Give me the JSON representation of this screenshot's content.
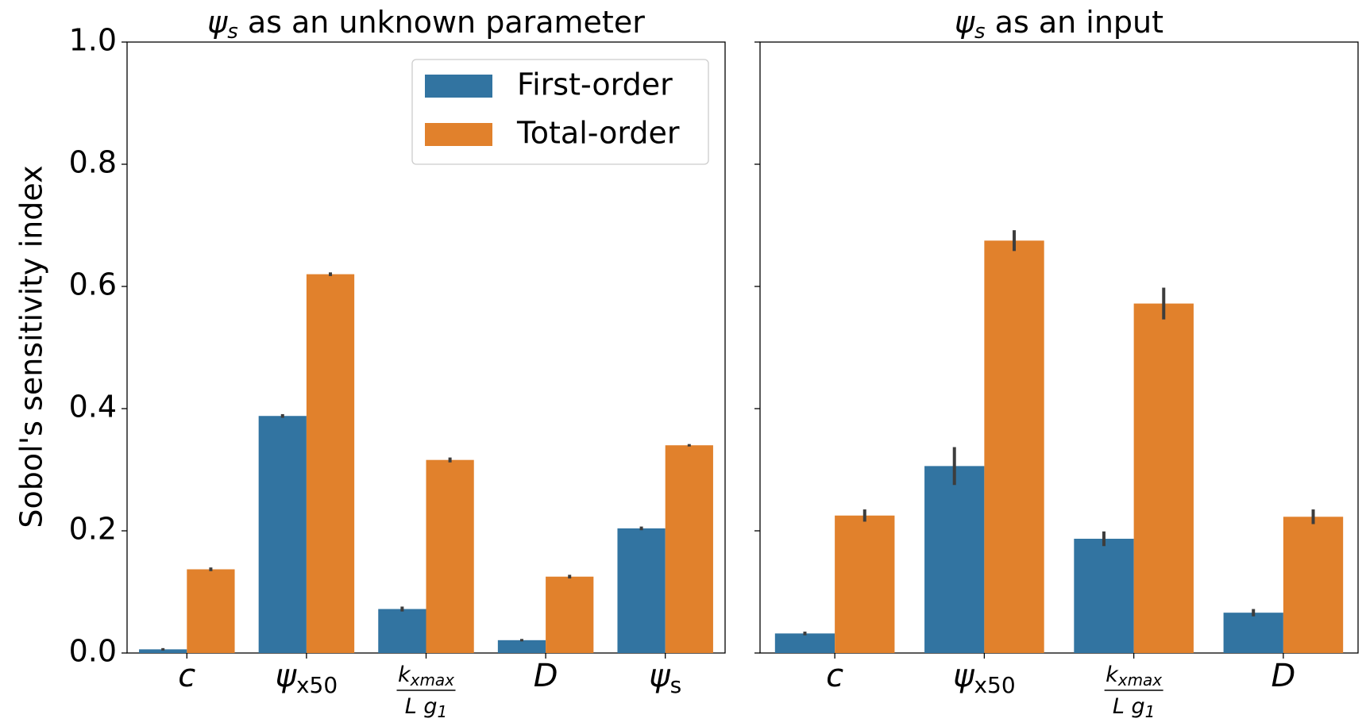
{
  "figure": {
    "ylabel": "Sobol's sensitivity index",
    "ylim": [
      0,
      1.0
    ],
    "yticks": [
      "0.0",
      "0.2",
      "0.4",
      "0.6",
      "0.8",
      "1.0"
    ]
  },
  "legend": {
    "placement": "top-right",
    "entries": [
      {
        "label": "First-order",
        "color": "#3274a1"
      },
      {
        "label": "Total-order",
        "color": "#e1812c"
      }
    ]
  },
  "chart_data": [
    {
      "type": "bar",
      "title_symbol": "ψ",
      "title_symbol_sub": "s",
      "title": " as an unknown parameter",
      "categories": [
        "c",
        "ψx50",
        "kxmax / L g1",
        "D",
        "ψs"
      ],
      "category_labels": [
        {
          "main": "c",
          "sub": ""
        },
        {
          "main": "ψ",
          "sub": "x50"
        },
        {
          "num": "k",
          "num_sub": "xmax",
          "den": "L g",
          "den_sub": "1"
        },
        {
          "main": "D",
          "sub": ""
        },
        {
          "main": "ψ",
          "sub": "s"
        }
      ],
      "ylim": [
        0,
        1.0
      ],
      "series": [
        {
          "name": "First-order",
          "color": "#3274a1",
          "values": [
            0.006,
            0.388,
            0.072,
            0.021,
            0.204
          ],
          "errors": [
            0.002,
            0.003,
            0.004,
            0.002,
            0.003
          ]
        },
        {
          "name": "Total-order",
          "color": "#e1812c",
          "values": [
            0.137,
            0.62,
            0.316,
            0.125,
            0.34
          ],
          "errors": [
            0.003,
            0.003,
            0.004,
            0.003,
            0.002
          ]
        }
      ]
    },
    {
      "type": "bar",
      "title_symbol": "ψ",
      "title_symbol_sub": "s",
      "title": " as an input",
      "categories": [
        "c",
        "ψx50",
        "kxmax / L g1",
        "D"
      ],
      "category_labels": [
        {
          "main": "c",
          "sub": ""
        },
        {
          "main": "ψ",
          "sub": "x50"
        },
        {
          "num": "k",
          "num_sub": "xmax",
          "den": "L g",
          "den_sub": "1"
        },
        {
          "main": "D",
          "sub": ""
        }
      ],
      "ylim": [
        0,
        1.0
      ],
      "series": [
        {
          "name": "First-order",
          "color": "#3274a1",
          "values": [
            0.032,
            0.306,
            0.187,
            0.066
          ],
          "errors": [
            0.003,
            0.031,
            0.012,
            0.006
          ]
        },
        {
          "name": "Total-order",
          "color": "#e1812c",
          "values": [
            0.225,
            0.675,
            0.572,
            0.223
          ],
          "errors": [
            0.01,
            0.017,
            0.026,
            0.012
          ]
        }
      ]
    }
  ]
}
